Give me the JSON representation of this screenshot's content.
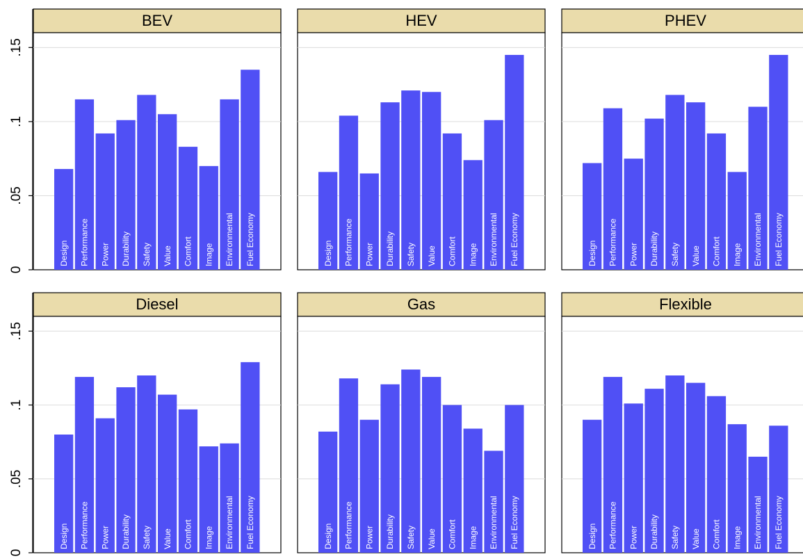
{
  "chart_data": {
    "type": "bar",
    "layout": "facet-grid-2x3",
    "ylim": [
      0,
      0.16
    ],
    "yticks": [
      0,
      0.05,
      0.1,
      0.15
    ],
    "ytick_labels": [
      "0",
      ".05",
      ".1",
      ".15"
    ],
    "grid": true,
    "bar_color": "#5050f5",
    "header_color": "#eadcab",
    "categories": [
      "Design",
      "Performance",
      "Power",
      "Durability",
      "Safety",
      "Value",
      "Comfort",
      "Image",
      "Environmental",
      "Fuel Economy"
    ],
    "panels": [
      {
        "title": "BEV",
        "values": [
          0.068,
          0.115,
          0.092,
          0.101,
          0.118,
          0.105,
          0.083,
          0.07,
          0.115,
          0.135
        ]
      },
      {
        "title": "HEV",
        "values": [
          0.066,
          0.104,
          0.065,
          0.113,
          0.121,
          0.12,
          0.092,
          0.074,
          0.101,
          0.145
        ]
      },
      {
        "title": "PHEV",
        "values": [
          0.072,
          0.109,
          0.075,
          0.102,
          0.118,
          0.113,
          0.092,
          0.066,
          0.11,
          0.145
        ]
      },
      {
        "title": "Diesel",
        "values": [
          0.08,
          0.119,
          0.091,
          0.112,
          0.12,
          0.107,
          0.097,
          0.072,
          0.074,
          0.129
        ]
      },
      {
        "title": "Gas",
        "values": [
          0.082,
          0.118,
          0.09,
          0.114,
          0.124,
          0.119,
          0.1,
          0.084,
          0.069,
          0.1
        ]
      },
      {
        "title": "Flexible",
        "values": [
          0.09,
          0.119,
          0.101,
          0.111,
          0.12,
          0.115,
          0.106,
          0.087,
          0.065,
          0.086
        ]
      }
    ]
  }
}
